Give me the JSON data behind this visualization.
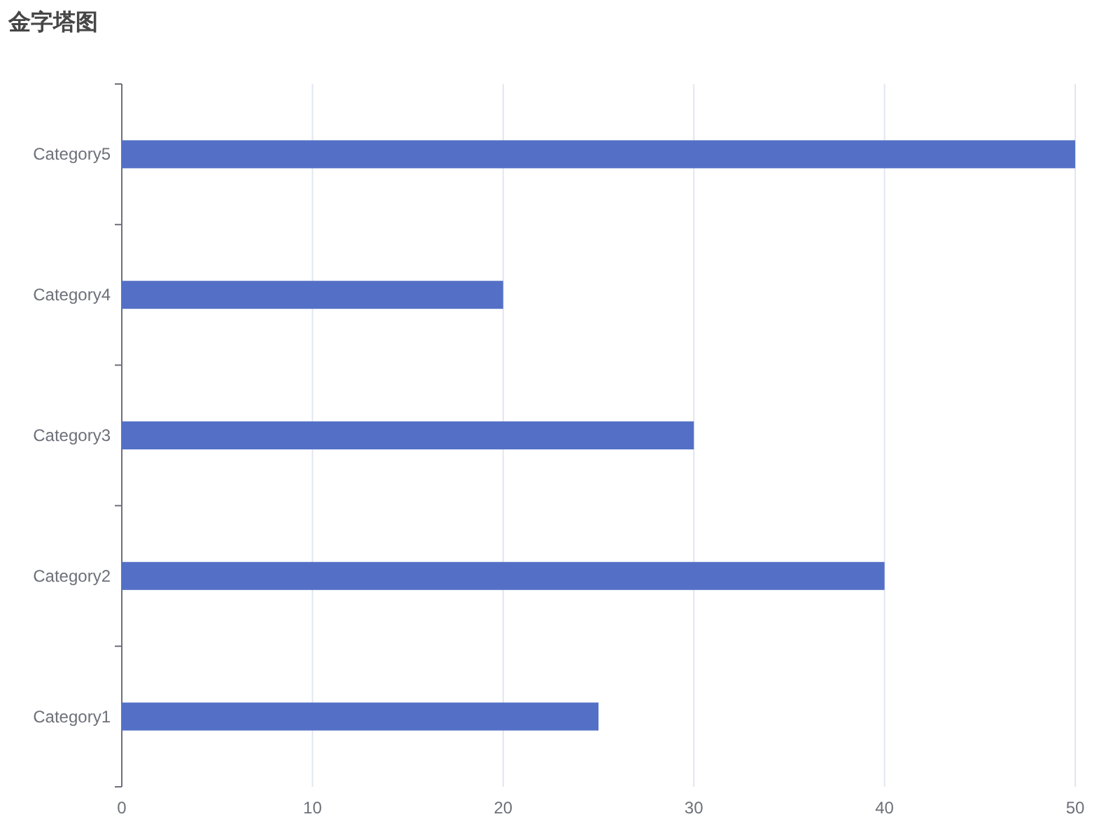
{
  "chart_data": {
    "type": "bar",
    "title": "金字塔图",
    "orientation": "horizontal",
    "categories": [
      "Category5",
      "Category4",
      "Category3",
      "Category2",
      "Category1"
    ],
    "values": [
      50,
      20,
      30,
      40,
      25
    ],
    "color": "#5470c6",
    "xlim": [
      0,
      50
    ],
    "xticks": [
      0,
      10,
      20,
      30,
      40,
      50
    ],
    "grid": "x"
  }
}
